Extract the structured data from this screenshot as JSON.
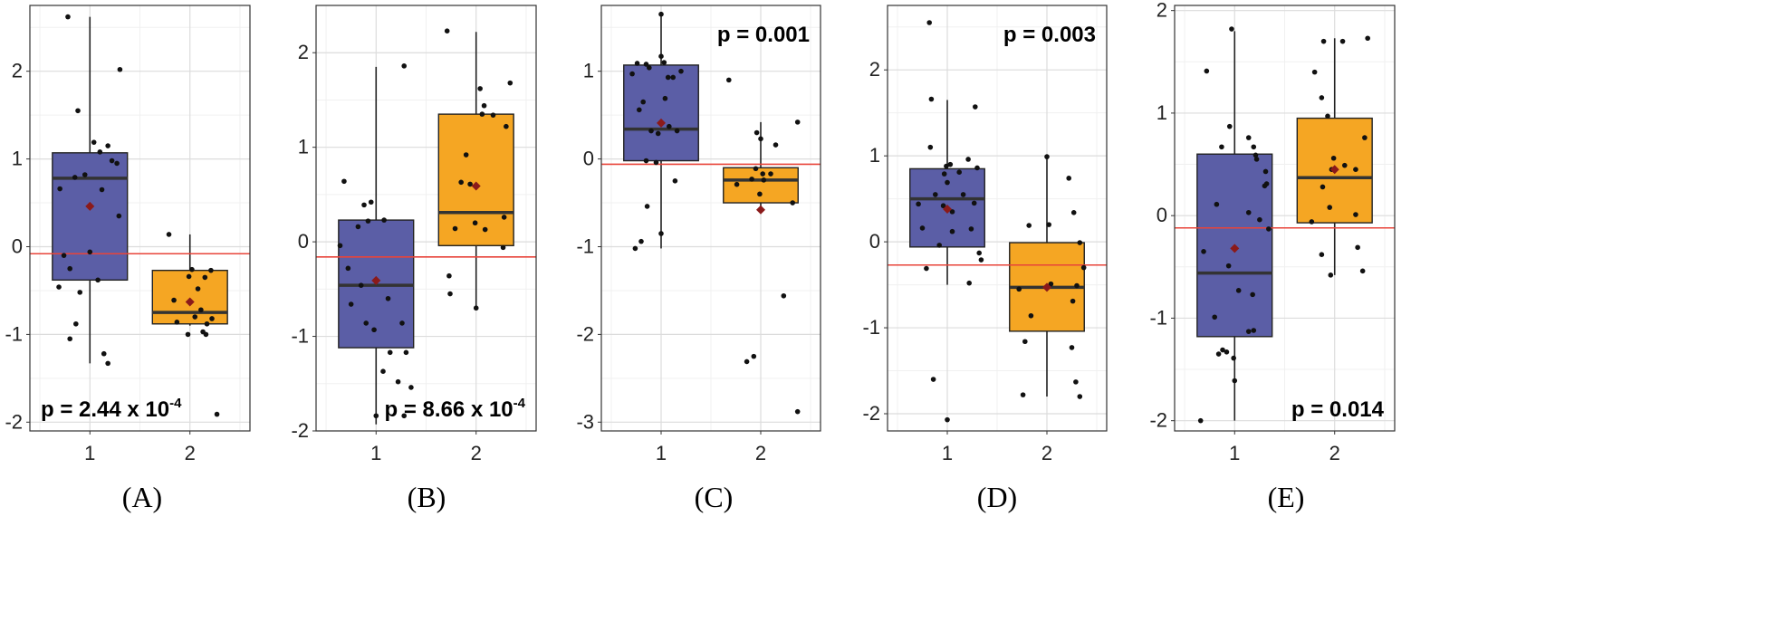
{
  "figure": {
    "colors": {
      "group1": "#5b5ea6",
      "group2": "#f5a623",
      "mean": "#8b1a1a",
      "ref_line": "#e8443a",
      "points": "#111111"
    }
  },
  "chart_data": [
    {
      "type": "box",
      "label": "(A)",
      "categories": [
        "1",
        "2"
      ],
      "ylim": [
        -2.1,
        2.75
      ],
      "yticks": [
        -2,
        -1,
        0,
        1,
        2
      ],
      "grid": true,
      "ref_line": -0.08,
      "pvalue": {
        "prefix": "p = 2.44 x 10",
        "exp": "-4",
        "position": "bottom-left"
      },
      "boxes": [
        {
          "q1": -0.38,
          "median": 0.78,
          "q3": 1.07,
          "whisker_low": -1.33,
          "whisker_high": 2.62,
          "mean": 0.46
        },
        {
          "q1": -0.88,
          "median": -0.75,
          "q3": -0.27,
          "whisker_low": -0.9,
          "whisker_high": 0.14,
          "mean": -0.63
        }
      ],
      "points": [
        [
          [
            0.78,
            2.62
          ],
          [
            1.04,
            1.19
          ],
          [
            1.3,
            2.02
          ],
          [
            0.88,
            1.55
          ],
          [
            1.1,
            1.08
          ],
          [
            1.18,
            1.15
          ],
          [
            0.95,
            0.82
          ],
          [
            1.22,
            0.98
          ],
          [
            1.27,
            0.95
          ],
          [
            0.7,
            0.66
          ],
          [
            0.85,
            0.79
          ],
          [
            1.12,
            0.65
          ],
          [
            1.29,
            0.35
          ],
          [
            0.74,
            -0.1
          ],
          [
            1.0,
            -0.06
          ],
          [
            0.8,
            -0.25
          ],
          [
            1.08,
            -0.38
          ],
          [
            0.69,
            -0.46
          ],
          [
            0.9,
            -0.52
          ],
          [
            0.86,
            -0.88
          ],
          [
            0.8,
            -1.05
          ],
          [
            1.14,
            -1.22
          ],
          [
            1.18,
            -1.33
          ]
        ],
        [
          [
            1.79,
            0.14
          ],
          [
            2.02,
            -0.26
          ],
          [
            1.99,
            -0.34
          ],
          [
            2.21,
            -0.27
          ],
          [
            2.08,
            -0.48
          ],
          [
            2.15,
            -0.35
          ],
          [
            1.84,
            -0.61
          ],
          [
            2.11,
            -0.72
          ],
          [
            1.87,
            -0.86
          ],
          [
            2.05,
            -0.8
          ],
          [
            2.22,
            -0.82
          ],
          [
            2.17,
            -0.88
          ],
          [
            2.13,
            -0.97
          ],
          [
            1.98,
            -1.0
          ],
          [
            2.16,
            -1.0
          ],
          [
            2.27,
            -1.91
          ]
        ]
      ]
    },
    {
      "type": "box",
      "label": "(B)",
      "categories": [
        "1",
        "2"
      ],
      "ylim": [
        -2.0,
        2.5
      ],
      "yticks": [
        -2,
        -1,
        0,
        1,
        2
      ],
      "grid": true,
      "ref_line": -0.16,
      "pvalue": {
        "prefix": "p = 8.66 x 10",
        "exp": "-4",
        "position": "bottom-right"
      },
      "boxes": [
        {
          "q1": -1.12,
          "median": -0.46,
          "q3": 0.23,
          "whisker_low": -1.93,
          "whisker_high": 1.85,
          "mean": -0.41
        },
        {
          "q1": -0.04,
          "median": 0.31,
          "q3": 1.35,
          "whisker_low": -0.7,
          "whisker_high": 2.22,
          "mean": 0.59
        }
      ],
      "points": [
        [
          [
            1.28,
            1.86
          ],
          [
            0.68,
            0.64
          ],
          [
            0.95,
            0.42
          ],
          [
            0.88,
            0.39
          ],
          [
            1.08,
            0.23
          ],
          [
            0.92,
            0.22
          ],
          [
            0.82,
            0.16
          ],
          [
            0.64,
            -0.04
          ],
          [
            0.72,
            -0.28
          ],
          [
            0.85,
            -0.46
          ],
          [
            1.12,
            -0.6
          ],
          [
            0.75,
            -0.66
          ],
          [
            1.26,
            -0.86
          ],
          [
            0.9,
            -0.86
          ],
          [
            0.98,
            -0.93
          ],
          [
            1.14,
            -1.17
          ],
          [
            1.3,
            -1.17
          ],
          [
            1.07,
            -1.37
          ],
          [
            1.22,
            -1.48
          ],
          [
            1.35,
            -1.54
          ],
          [
            1.0,
            -1.84
          ],
          [
            1.28,
            -1.84
          ]
        ],
        [
          [
            1.71,
            2.23
          ],
          [
            2.04,
            1.62
          ],
          [
            2.08,
            1.44
          ],
          [
            2.06,
            1.35
          ],
          [
            2.17,
            1.34
          ],
          [
            2.34,
            1.68
          ],
          [
            2.3,
            1.22
          ],
          [
            1.9,
            0.92
          ],
          [
            1.85,
            0.63
          ],
          [
            1.94,
            0.61
          ],
          [
            2.28,
            0.26
          ],
          [
            1.99,
            0.2
          ],
          [
            1.79,
            0.14
          ],
          [
            2.09,
            0.13
          ],
          [
            2.27,
            -0.06
          ],
          [
            1.73,
            -0.36
          ],
          [
            2.0,
            -0.7
          ],
          [
            1.74,
            -0.55
          ]
        ]
      ]
    },
    {
      "type": "box",
      "label": "(C)",
      "categories": [
        "1",
        "2"
      ],
      "ylim": [
        -3.1,
        1.75
      ],
      "yticks": [
        -3,
        -2,
        -1,
        0,
        1
      ],
      "grid": true,
      "ref_line": -0.06,
      "pvalue": {
        "prefix": "p = 0.001",
        "exp": "",
        "position": "top-right"
      },
      "boxes": [
        {
          "q1": -0.02,
          "median": 0.34,
          "q3": 1.07,
          "whisker_low": -1.02,
          "whisker_high": 1.65,
          "mean": 0.41
        },
        {
          "q1": -0.5,
          "median": -0.24,
          "q3": -0.1,
          "whisker_low": -0.58,
          "whisker_high": 0.42,
          "mean": -0.58
        }
      ],
      "points": [
        [
          [
            1.0,
            1.65
          ],
          [
            0.76,
            1.09
          ],
          [
            0.85,
            1.08
          ],
          [
            1.0,
            1.17
          ],
          [
            1.03,
            1.1
          ],
          [
            0.88,
            1.04
          ],
          [
            1.2,
            1.0
          ],
          [
            0.71,
            0.97
          ],
          [
            1.07,
            0.93
          ],
          [
            1.12,
            0.93
          ],
          [
            1.04,
            0.69
          ],
          [
            0.82,
            0.65
          ],
          [
            0.78,
            0.56
          ],
          [
            0.9,
            0.32
          ],
          [
            1.08,
            0.37
          ],
          [
            0.97,
            0.29
          ],
          [
            1.16,
            0.32
          ],
          [
            0.85,
            -0.02
          ],
          [
            0.95,
            -0.04
          ],
          [
            1.14,
            -0.25
          ],
          [
            0.86,
            -0.54
          ],
          [
            1.0,
            -0.85
          ],
          [
            0.8,
            -0.94
          ],
          [
            0.74,
            -1.02
          ]
        ],
        [
          [
            1.68,
            0.9
          ],
          [
            2.37,
            0.42
          ],
          [
            1.96,
            0.3
          ],
          [
            2.0,
            0.23
          ],
          [
            2.15,
            0.16
          ],
          [
            2.1,
            -0.17
          ],
          [
            2.02,
            -0.17
          ],
          [
            2.03,
            -0.24
          ],
          [
            1.95,
            -0.11
          ],
          [
            1.91,
            -0.23
          ],
          [
            1.76,
            -0.29
          ],
          [
            1.99,
            -0.4
          ],
          [
            2.32,
            -0.5
          ],
          [
            2.23,
            -1.56
          ],
          [
            1.93,
            -2.25
          ],
          [
            1.86,
            -2.31
          ],
          [
            2.37,
            -2.88
          ]
        ]
      ]
    },
    {
      "type": "box",
      "label": "(D)",
      "categories": [
        "1",
        "2"
      ],
      "ylim": [
        -2.2,
        2.75
      ],
      "yticks": [
        -2,
        -1,
        0,
        1,
        2
      ],
      "grid": true,
      "ref_line": -0.27,
      "pvalue": {
        "prefix": "p = 0.003",
        "exp": "",
        "position": "top-right"
      },
      "boxes": [
        {
          "q1": -0.06,
          "median": 0.5,
          "q3": 0.85,
          "whisker_low": -0.5,
          "whisker_high": 1.65,
          "mean": 0.38
        },
        {
          "q1": -1.04,
          "median": -0.53,
          "q3": -0.01,
          "whisker_low": -1.8,
          "whisker_high": 0.99,
          "mean": -0.53
        }
      ],
      "points": [
        [
          [
            0.82,
            2.55
          ],
          [
            0.84,
            1.66
          ],
          [
            1.28,
            1.57
          ],
          [
            0.83,
            1.1
          ],
          [
            0.99,
            0.88
          ],
          [
            1.03,
            0.9
          ],
          [
            1.21,
            0.96
          ],
          [
            1.3,
            0.86
          ],
          [
            0.97,
            0.79
          ],
          [
            1.12,
            0.81
          ],
          [
            1.0,
            0.69
          ],
          [
            0.88,
            0.55
          ],
          [
            1.16,
            0.55
          ],
          [
            1.27,
            0.45
          ],
          [
            0.71,
            0.44
          ],
          [
            0.96,
            0.42
          ],
          [
            1.05,
            0.35
          ],
          [
            1.24,
            0.15
          ],
          [
            0.75,
            0.16
          ],
          [
            1.05,
            0.12
          ],
          [
            0.92,
            -0.04
          ],
          [
            1.32,
            -0.13
          ],
          [
            1.34,
            -0.21
          ],
          [
            0.79,
            -0.31
          ],
          [
            1.22,
            -0.48
          ],
          [
            0.86,
            -1.6
          ],
          [
            1.0,
            -2.07
          ]
        ],
        [
          [
            2.0,
            0.99
          ],
          [
            2.22,
            0.74
          ],
          [
            2.27,
            0.34
          ],
          [
            2.02,
            0.2
          ],
          [
            1.82,
            0.19
          ],
          [
            2.33,
            -0.01
          ],
          [
            2.37,
            -0.3
          ],
          [
            2.04,
            -0.49
          ],
          [
            1.72,
            -0.55
          ],
          [
            2.3,
            -0.51
          ],
          [
            2.26,
            -0.69
          ],
          [
            1.84,
            -0.86
          ],
          [
            1.78,
            -1.16
          ],
          [
            2.25,
            -1.23
          ],
          [
            2.29,
            -1.63
          ],
          [
            1.76,
            -1.78
          ],
          [
            2.33,
            -1.8
          ]
        ]
      ]
    },
    {
      "type": "box",
      "label": "(E)",
      "categories": [
        "1",
        "2"
      ],
      "ylim": [
        -2.1,
        2.05
      ],
      "yticks": [
        -2,
        -1,
        0,
        1,
        2
      ],
      "grid": true,
      "ref_line": -0.12,
      "pvalue": {
        "prefix": "p = 0.014",
        "exp": "",
        "position": "bottom-right"
      },
      "boxes": [
        {
          "q1": -1.18,
          "median": -0.56,
          "q3": 0.6,
          "whisker_low": -2.0,
          "whisker_high": 1.8,
          "mean": -0.32
        },
        {
          "q1": -0.07,
          "median": 0.37,
          "q3": 0.95,
          "whisker_low": -0.58,
          "whisker_high": 1.73,
          "mean": 0.45
        }
      ],
      "points": [
        [
          [
            0.97,
            1.82
          ],
          [
            0.72,
            1.41
          ],
          [
            0.95,
            0.87
          ],
          [
            1.14,
            0.76
          ],
          [
            0.87,
            0.67
          ],
          [
            1.19,
            0.67
          ],
          [
            1.21,
            0.59
          ],
          [
            1.22,
            0.55
          ],
          [
            1.31,
            0.43
          ],
          [
            1.32,
            0.31
          ],
          [
            1.3,
            0.29
          ],
          [
            0.82,
            0.11
          ],
          [
            1.14,
            0.03
          ],
          [
            1.25,
            -0.04
          ],
          [
            1.34,
            -0.13
          ],
          [
            0.69,
            -0.35
          ],
          [
            0.94,
            -0.49
          ],
          [
            1.04,
            -0.73
          ],
          [
            1.18,
            -0.77
          ],
          [
            0.8,
            -0.99
          ],
          [
            1.19,
            -1.12
          ],
          [
            1.14,
            -1.13
          ],
          [
            0.88,
            -1.31
          ],
          [
            0.92,
            -1.33
          ],
          [
            0.84,
            -1.35
          ],
          [
            0.99,
            -1.39
          ],
          [
            1.0,
            -1.61
          ],
          [
            0.66,
            -2.0
          ]
        ],
        [
          [
            2.08,
            1.7
          ],
          [
            1.89,
            1.7
          ],
          [
            2.33,
            1.73
          ],
          [
            1.8,
            1.4
          ],
          [
            1.87,
            1.15
          ],
          [
            1.93,
            0.97
          ],
          [
            2.3,
            0.76
          ],
          [
            1.99,
            0.56
          ],
          [
            2.1,
            0.49
          ],
          [
            1.97,
            0.45
          ],
          [
            2.21,
            0.45
          ],
          [
            1.88,
            0.28
          ],
          [
            2.21,
            0.01
          ],
          [
            1.95,
            0.08
          ],
          [
            1.77,
            -0.06
          ],
          [
            1.87,
            -0.38
          ],
          [
            2.23,
            -0.31
          ],
          [
            1.96,
            -0.58
          ],
          [
            2.28,
            -0.54
          ]
        ]
      ]
    }
  ]
}
